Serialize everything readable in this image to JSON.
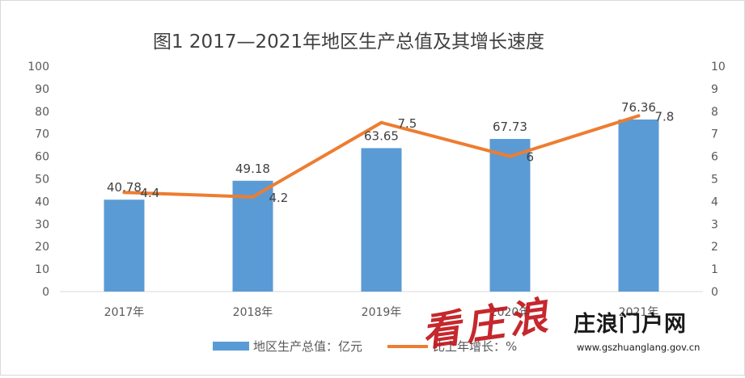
{
  "chart_data": {
    "type": "bar",
    "title": "图1 2017—2021年地区生产总值及其增长速度",
    "categories": [
      "2017年",
      "2018年",
      "2019年",
      "2020年",
      "2021年"
    ],
    "series": [
      {
        "name": "地区生产总值：亿元",
        "type": "bar",
        "axis": "left",
        "color": "#5b9bd5",
        "values": [
          40.78,
          49.18,
          63.65,
          67.73,
          76.36
        ]
      },
      {
        "name": "比上年增长：%",
        "type": "line",
        "axis": "right",
        "color": "#ed7d31",
        "values": [
          4.4,
          4.2,
          7.5,
          6,
          7.8
        ]
      }
    ],
    "y_left": {
      "min": 0,
      "max": 100,
      "step": 10
    },
    "y_right": {
      "min": 0,
      "max": 10,
      "step": 1
    },
    "grid": false,
    "legend_position": "bottom"
  },
  "watermark": {
    "brand_text": "庄浪门户网",
    "url_text": "www.gszhuanglang.gov.cn",
    "stamp_text": "看庄浪"
  }
}
